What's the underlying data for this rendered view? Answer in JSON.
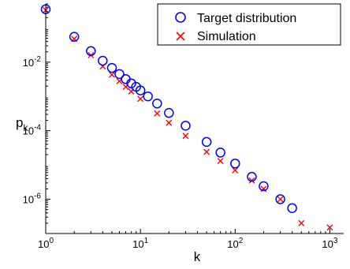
{
  "chart_data": {
    "type": "scatter",
    "xlabel": "k",
    "ylabel": "p_k",
    "xscale": "log",
    "yscale": "log",
    "xlim": [
      1,
      1400
    ],
    "ylim": [
      1e-07,
      0.5
    ],
    "x_ticks": [
      {
        "base": "10",
        "exp": "0",
        "value": 1
      },
      {
        "base": "10",
        "exp": "1",
        "value": 10
      },
      {
        "base": "10",
        "exp": "2",
        "value": 100
      },
      {
        "base": "10",
        "exp": "3",
        "value": 1000
      }
    ],
    "y_ticks": [
      {
        "base": "10",
        "exp": "-6",
        "value": 1e-06
      },
      {
        "base": "10",
        "exp": "-4",
        "value": 0.0001
      },
      {
        "base": "10",
        "exp": "-2",
        "value": 0.01
      }
    ],
    "grid": false,
    "legend_position": "top-right",
    "series": [
      {
        "name": "Target distribution",
        "marker": "circle",
        "color": "#0000ff",
        "points": [
          [
            1,
            0.35
          ],
          [
            2,
            0.055
          ],
          [
            3,
            0.021
          ],
          [
            4,
            0.011
          ],
          [
            5,
            0.0068
          ],
          [
            6,
            0.0045
          ],
          [
            7,
            0.0032
          ],
          [
            8,
            0.0024
          ],
          [
            9,
            0.0019
          ],
          [
            10,
            0.0015
          ],
          [
            12,
            0.001
          ],
          [
            15,
            0.00062
          ],
          [
            20,
            0.00033
          ],
          [
            30,
            0.00014
          ],
          [
            50,
            4.7e-05
          ],
          [
            70,
            2.3e-05
          ],
          [
            100,
            1.1e-05
          ],
          [
            150,
            4.5e-06
          ],
          [
            200,
            2.4e-06
          ],
          [
            300,
            1e-06
          ],
          [
            400,
            5.5e-07
          ]
        ]
      },
      {
        "name": "Simulation",
        "marker": "x",
        "color": "#ff0000",
        "points": [
          [
            1,
            0.33
          ],
          [
            2,
            0.048
          ],
          [
            3,
            0.016
          ],
          [
            4,
            0.0075
          ],
          [
            5,
            0.0043
          ],
          [
            6,
            0.0028
          ],
          [
            7,
            0.0019
          ],
          [
            8,
            0.0014
          ],
          [
            10,
            0.00085
          ],
          [
            15,
            0.00032
          ],
          [
            20,
            0.00017
          ],
          [
            30,
            7e-05
          ],
          [
            50,
            2.4e-05
          ],
          [
            70,
            1.3e-05
          ],
          [
            100,
            7e-06
          ],
          [
            150,
            3.5e-06
          ],
          [
            200,
            2e-06
          ],
          [
            300,
            1e-06
          ],
          [
            500,
            2e-07
          ],
          [
            1000,
            1.5e-07
          ]
        ]
      }
    ]
  }
}
